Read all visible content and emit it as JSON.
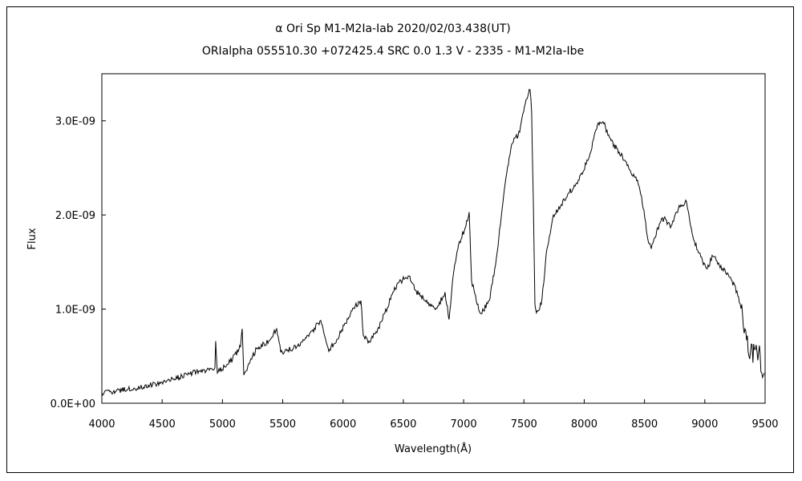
{
  "chart_data": {
    "type": "line",
    "title": "α Ori    Sp M1-M2Ia-Iab   2020/02/03.438(UT)",
    "subtitle": "ORIalpha 055510.30 +072425.4 SRC 0.0 1.3 V - 2335 - M1-M2Ia-Ibe",
    "xlabel": "Wavelength(Å)",
    "ylabel": "Flux",
    "xlim": [
      4000,
      9500
    ],
    "ylim": [
      0,
      3.5e-09
    ],
    "y_unit_scale": 1e-09,
    "grid": false,
    "xticks": [
      "4000",
      "4500",
      "5000",
      "5500",
      "6000",
      "6500",
      "7000",
      "7500",
      "8000",
      "8500",
      "9000",
      "9500"
    ],
    "xtick_values": [
      4000,
      4500,
      5000,
      5500,
      6000,
      6500,
      7000,
      7500,
      8000,
      8500,
      9000,
      9500
    ],
    "yticks": [
      "0.0E+00",
      "1.0E-09",
      "2.0E-09",
      "3.0E-09"
    ],
    "ytick_values": [
      0,
      1e-09,
      2e-09,
      3e-09
    ],
    "series": [
      {
        "name": "Flux",
        "color": "#000000",
        "x": [
          4000,
          4219,
          4485,
          4751,
          4938,
          4944,
          4958,
          5084,
          5150,
          5164,
          5177,
          5283,
          5383,
          5450,
          5483,
          5616,
          5716,
          5815,
          5882,
          5982,
          6081,
          6148,
          6168,
          6214,
          6281,
          6347,
          6414,
          6480,
          6547,
          6600,
          6680,
          6780,
          6846,
          6879,
          6913,
          6959,
          7012,
          7046,
          7066,
          7112,
          7145,
          7212,
          7265,
          7312,
          7358,
          7398,
          7465,
          7511,
          7551,
          7564,
          7578,
          7591,
          7604,
          7644,
          7691,
          7744,
          7810,
          7877,
          7957,
          8043,
          8110,
          8156,
          8223,
          8289,
          8376,
          8442,
          8475,
          8529,
          8556,
          8622,
          8668,
          8715,
          8781,
          8848,
          8894,
          8947,
          9014,
          9067,
          9147,
          9226,
          9280,
          9333,
          9379,
          9446,
          9492
        ],
        "y": [
          0.11,
          0.15,
          0.21,
          0.32,
          0.38,
          0.66,
          0.32,
          0.47,
          0.6,
          0.79,
          0.3,
          0.58,
          0.66,
          0.79,
          0.54,
          0.6,
          0.71,
          0.88,
          0.55,
          0.75,
          1.01,
          1.09,
          0.72,
          0.66,
          0.75,
          0.96,
          1.18,
          1.3,
          1.35,
          1.2,
          1.09,
          1.01,
          1.18,
          0.89,
          1.35,
          1.69,
          1.86,
          2.03,
          1.3,
          1.05,
          0.95,
          1.09,
          1.47,
          1.98,
          2.45,
          2.75,
          2.88,
          3.18,
          3.33,
          3.09,
          2.15,
          1.05,
          0.96,
          1.05,
          1.64,
          2.0,
          2.11,
          2.24,
          2.37,
          2.62,
          2.96,
          2.99,
          2.79,
          2.67,
          2.48,
          2.37,
          2.2,
          1.73,
          1.64,
          1.9,
          1.98,
          1.86,
          2.07,
          2.14,
          1.81,
          1.6,
          1.43,
          1.56,
          1.43,
          1.3,
          1.13,
          0.79,
          0.54,
          0.54,
          0.32
        ]
      }
    ]
  }
}
